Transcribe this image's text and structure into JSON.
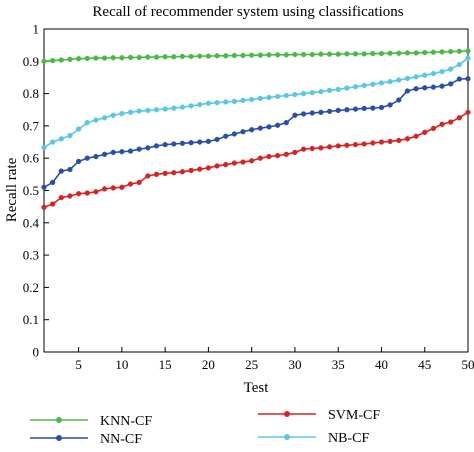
{
  "chart_data": {
    "type": "line",
    "title": "Recall of recommender system using classifications",
    "xlabel": "Test",
    "ylabel": "Recall rate",
    "xlim": [
      1,
      50
    ],
    "ylim": [
      0,
      1
    ],
    "x_ticks": [
      5,
      10,
      15,
      20,
      25,
      30,
      35,
      40,
      45,
      50
    ],
    "y_ticks": [
      0,
      0.1,
      0.2,
      0.3,
      0.4,
      0.5,
      0.6,
      0.7,
      0.8,
      0.9,
      1
    ],
    "grid": false,
    "legend_position": "bottom",
    "x": [
      1,
      2,
      3,
      4,
      5,
      6,
      7,
      8,
      9,
      10,
      11,
      12,
      13,
      14,
      15,
      16,
      17,
      18,
      19,
      20,
      21,
      22,
      23,
      24,
      25,
      26,
      27,
      28,
      29,
      30,
      31,
      32,
      33,
      34,
      35,
      36,
      37,
      38,
      39,
      40,
      41,
      42,
      43,
      44,
      45,
      46,
      47,
      48,
      49,
      50
    ],
    "series": [
      {
        "name": "KNN-CF",
        "color": "#4db848",
        "values": [
          0.9,
          0.902,
          0.904,
          0.906,
          0.908,
          0.909,
          0.91,
          0.91,
          0.911,
          0.911,
          0.912,
          0.912,
          0.913,
          0.913,
          0.914,
          0.914,
          0.915,
          0.915,
          0.916,
          0.916,
          0.917,
          0.917,
          0.918,
          0.918,
          0.919,
          0.919,
          0.92,
          0.92,
          0.92,
          0.921,
          0.921,
          0.921,
          0.922,
          0.922,
          0.922,
          0.923,
          0.923,
          0.923,
          0.924,
          0.924,
          0.925,
          0.925,
          0.926,
          0.926,
          0.927,
          0.928,
          0.929,
          0.93,
          0.931,
          0.932
        ]
      },
      {
        "name": "NN-CF",
        "color": "#2b4ea8",
        "values": [
          0.51,
          0.525,
          0.56,
          0.565,
          0.59,
          0.6,
          0.605,
          0.612,
          0.618,
          0.62,
          0.622,
          0.628,
          0.632,
          0.638,
          0.642,
          0.644,
          0.646,
          0.648,
          0.65,
          0.652,
          0.658,
          0.668,
          0.675,
          0.682,
          0.688,
          0.693,
          0.697,
          0.702,
          0.71,
          0.733,
          0.737,
          0.74,
          0.742,
          0.745,
          0.748,
          0.75,
          0.752,
          0.754,
          0.755,
          0.757,
          0.765,
          0.78,
          0.808,
          0.815,
          0.818,
          0.82,
          0.823,
          0.83,
          0.845,
          0.846
        ]
      },
      {
        "name": "SVM-CF",
        "color": "#d62424",
        "values": [
          0.448,
          0.458,
          0.478,
          0.483,
          0.49,
          0.492,
          0.496,
          0.505,
          0.508,
          0.51,
          0.52,
          0.525,
          0.545,
          0.55,
          0.553,
          0.555,
          0.558,
          0.562,
          0.566,
          0.57,
          0.576,
          0.58,
          0.585,
          0.588,
          0.592,
          0.6,
          0.605,
          0.608,
          0.612,
          0.618,
          0.628,
          0.63,
          0.632,
          0.635,
          0.638,
          0.64,
          0.642,
          0.644,
          0.647,
          0.65,
          0.652,
          0.655,
          0.66,
          0.668,
          0.68,
          0.692,
          0.705,
          0.712,
          0.725,
          0.742
        ]
      },
      {
        "name": "NB-CF",
        "color": "#5bc6e6",
        "values": [
          0.633,
          0.65,
          0.66,
          0.67,
          0.69,
          0.71,
          0.718,
          0.725,
          0.733,
          0.738,
          0.742,
          0.746,
          0.748,
          0.75,
          0.752,
          0.755,
          0.758,
          0.762,
          0.766,
          0.77,
          0.772,
          0.774,
          0.776,
          0.779,
          0.782,
          0.785,
          0.788,
          0.791,
          0.794,
          0.797,
          0.8,
          0.803,
          0.806,
          0.81,
          0.813,
          0.817,
          0.821,
          0.825,
          0.829,
          0.833,
          0.837,
          0.842,
          0.847,
          0.852,
          0.857,
          0.862,
          0.868,
          0.876,
          0.89,
          0.91
        ]
      }
    ]
  }
}
